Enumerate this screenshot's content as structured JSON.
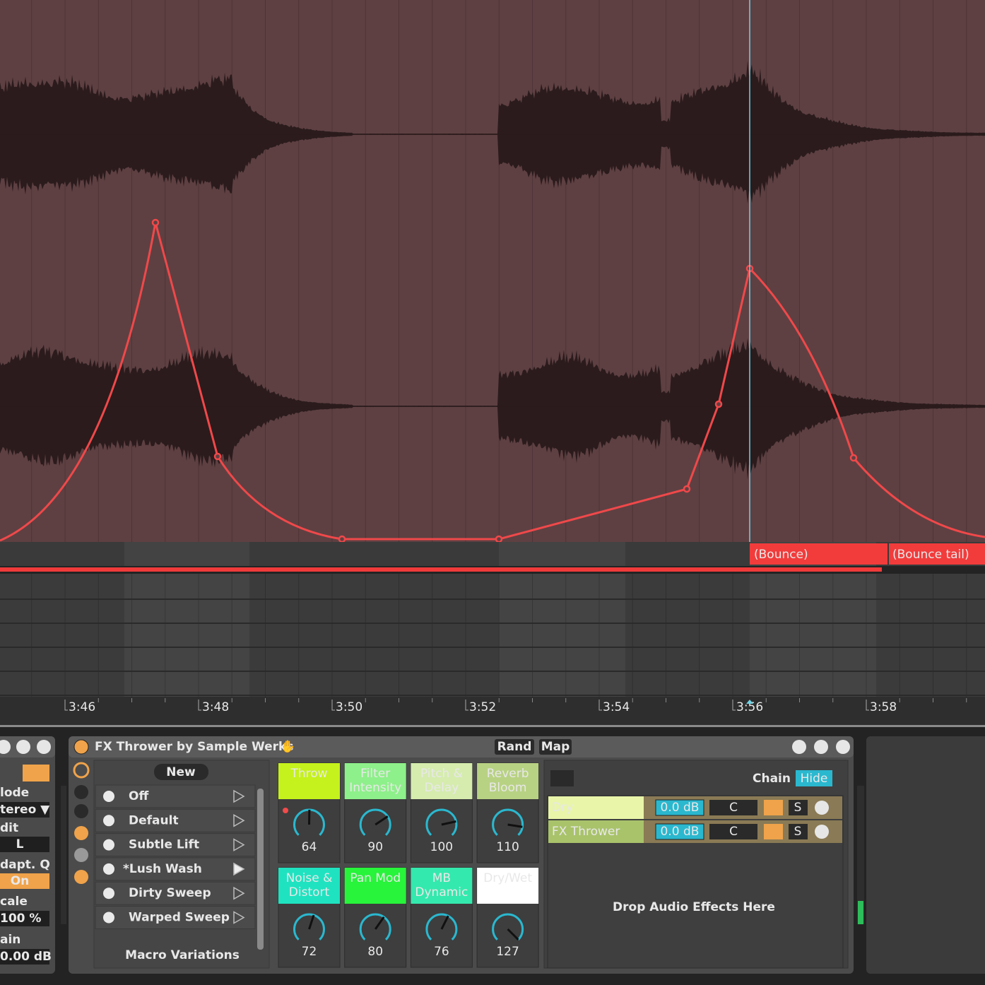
{
  "timeline": {
    "ruler": [
      "3:46",
      "3:48",
      "3:50",
      "3:52",
      "3:54",
      "3:56",
      "3:58"
    ],
    "clips": [
      "(Bounce)",
      "(Bounce tail)"
    ]
  },
  "left_panel": {
    "labels": [
      "lode",
      "tereo ▼",
      "dit",
      "L",
      "dapt. Q",
      "On",
      "cale",
      "100 %",
      "ain",
      "0.00 dB"
    ]
  },
  "device": {
    "title": "FX Thrower by Sample Werks",
    "buttons": [
      "Rand",
      "Map"
    ],
    "variations": {
      "new": "New",
      "items": [
        "Off",
        "Default",
        "Subtle Lift",
        "*Lush Wash",
        "Dirty Sweep",
        "Warped Sweep"
      ],
      "footer": "Macro Variations"
    },
    "macros": [
      {
        "name": "Throw",
        "value": 64
      },
      {
        "name": "Filter\nIntensity",
        "value": 90
      },
      {
        "name": "Pitch &\nDelay",
        "value": 100
      },
      {
        "name": "Reverb\nBloom",
        "value": 110
      },
      {
        "name": "Noise &\nDistort",
        "value": 72
      },
      {
        "name": "Pan Mod",
        "value": 80
      },
      {
        "name": "MB\nDynamic",
        "value": 76
      },
      {
        "name": "Dry/Wet",
        "value": 127
      }
    ],
    "chain": {
      "buttons": [
        "Chain",
        "Hide"
      ],
      "chains": [
        {
          "name": "Dry",
          "volume": "0.0 dB",
          "pan": "C",
          "solo": "S"
        },
        {
          "name": "FX Thrower",
          "volume": "0.0 dB",
          "pan": "C",
          "solo": "S"
        }
      ],
      "drop_hint": "Drop Audio Effects Here"
    }
  }
}
